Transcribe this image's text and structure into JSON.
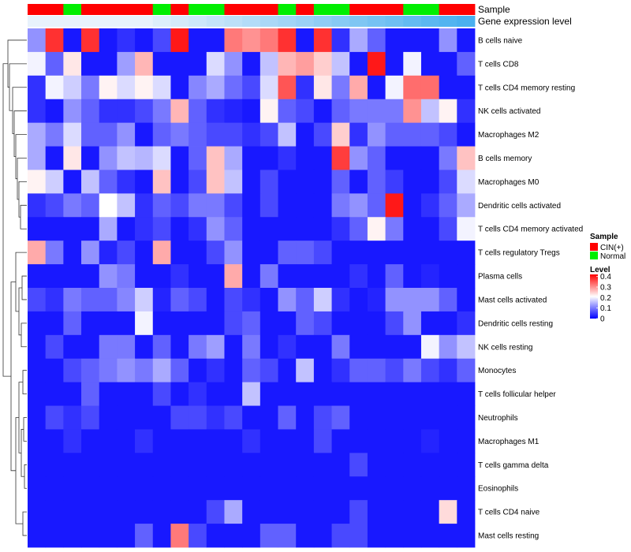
{
  "chart_data": {
    "type": "heatmap",
    "title": "",
    "annotations": [
      {
        "name": "Sample",
        "label": "Sample"
      },
      {
        "name": "Gene expression level",
        "label": "Gene expression level"
      }
    ],
    "rows": [
      "B cells naive",
      "T cells CD8",
      "T cells CD4 memory resting",
      "NK cells activated",
      "Macrophages M2",
      "B cells memory",
      "Macrophages M0",
      "Dendritic cells activated",
      "T cells CD4 memory activated",
      "T cells regulatory  Tregs",
      "Plasma cells",
      "Mast cells activated",
      "Dendritic cells resting",
      "NK cells resting",
      "Monocytes",
      "T cells follicular helper",
      "Neutrophils",
      "Macrophages M1",
      "T cells gamma delta",
      "Eosinophils",
      "T cells CD4 naive",
      "Mast cells resting"
    ],
    "columns": 25,
    "sample_groups": [
      "CIN+",
      "CIN+",
      "Normal",
      "CIN+",
      "CIN+",
      "CIN+",
      "CIN+",
      "Normal",
      "CIN+",
      "Normal",
      "Normal",
      "CIN+",
      "CIN+",
      "CIN+",
      "Normal",
      "CIN+",
      "Normal",
      "Normal",
      "CIN+",
      "CIN+",
      "CIN+",
      "Normal",
      "Normal",
      "CIN+",
      "CIN+"
    ],
    "gene_expression_level": [
      0.0,
      0.0,
      0.0,
      0.0,
      0.0,
      0.0,
      0.0,
      0.05,
      0.09,
      0.13,
      0.17,
      0.21,
      0.25,
      0.29,
      0.33,
      0.37,
      0.42,
      0.46,
      0.5,
      0.54,
      0.58,
      0.63,
      0.67,
      0.71,
      0.75
    ],
    "values": [
      [
        0.12,
        0.38,
        0.02,
        0.38,
        0.02,
        0.04,
        0.02,
        0.06,
        0.4,
        0.02,
        0.02,
        0.32,
        0.3,
        0.32,
        0.38,
        0.02,
        0.38,
        0.04,
        0.14,
        0.08,
        0.02,
        0.02,
        0.02,
        0.12,
        0.02
      ],
      [
        0.2,
        0.08,
        0.23,
        0.02,
        0.02,
        0.13,
        0.27,
        0.02,
        0.02,
        0.02,
        0.18,
        0.12,
        0.02,
        0.16,
        0.27,
        0.29,
        0.25,
        0.16,
        0.02,
        0.4,
        0.02,
        0.2,
        0.02,
        0.02,
        0.08
      ],
      [
        0.04,
        0.2,
        0.17,
        0.1,
        0.22,
        0.18,
        0.22,
        0.18,
        0.02,
        0.11,
        0.14,
        0.09,
        0.06,
        0.18,
        0.35,
        0.04,
        0.23,
        0.1,
        0.28,
        0.02,
        0.2,
        0.33,
        0.33,
        0.02,
        0.02
      ],
      [
        0.04,
        0.02,
        0.12,
        0.08,
        0.04,
        0.04,
        0.06,
        0.1,
        0.27,
        0.08,
        0.04,
        0.03,
        0.02,
        0.22,
        0.08,
        0.06,
        0.02,
        0.08,
        0.1,
        0.1,
        0.1,
        0.3,
        0.16,
        0.22,
        0.04
      ],
      [
        0.14,
        0.1,
        0.18,
        0.08,
        0.08,
        0.12,
        0.02,
        0.08,
        0.1,
        0.08,
        0.06,
        0.06,
        0.04,
        0.06,
        0.16,
        0.02,
        0.06,
        0.25,
        0.04,
        0.12,
        0.08,
        0.08,
        0.08,
        0.06,
        0.02
      ],
      [
        0.14,
        0.02,
        0.23,
        0.02,
        0.12,
        0.16,
        0.15,
        0.18,
        0.02,
        0.08,
        0.26,
        0.14,
        0.02,
        0.02,
        0.04,
        0.02,
        0.02,
        0.37,
        0.12,
        0.08,
        0.02,
        0.02,
        0.02,
        0.1,
        0.26
      ],
      [
        0.22,
        0.17,
        0.02,
        0.16,
        0.08,
        0.04,
        0.02,
        0.26,
        0.02,
        0.06,
        0.26,
        0.16,
        0.02,
        0.06,
        0.02,
        0.02,
        0.02,
        0.08,
        0.02,
        0.08,
        0.05,
        0.02,
        0.02,
        0.06,
        0.18
      ],
      [
        0.04,
        0.06,
        0.1,
        0.08,
        0.21,
        0.16,
        0.04,
        0.08,
        0.06,
        0.1,
        0.1,
        0.06,
        0.02,
        0.06,
        0.02,
        0.02,
        0.02,
        0.1,
        0.12,
        0.08,
        0.4,
        0.02,
        0.04,
        0.08,
        0.14
      ],
      [
        0.02,
        0.02,
        0.02,
        0.02,
        0.14,
        0.02,
        0.04,
        0.06,
        0.02,
        0.04,
        0.12,
        0.08,
        0.02,
        0.02,
        0.02,
        0.02,
        0.02,
        0.04,
        0.08,
        0.22,
        0.1,
        0.02,
        0.02,
        0.06,
        0.2
      ],
      [
        0.28,
        0.1,
        0.02,
        0.12,
        0.03,
        0.06,
        0.02,
        0.28,
        0.02,
        0.02,
        0.06,
        0.12,
        0.02,
        0.02,
        0.08,
        0.08,
        0.06,
        0.02,
        0.02,
        0.02,
        0.02,
        0.02,
        0.02,
        0.02,
        0.02
      ],
      [
        0.02,
        0.02,
        0.02,
        0.02,
        0.12,
        0.1,
        0.02,
        0.02,
        0.04,
        0.02,
        0.02,
        0.28,
        0.02,
        0.1,
        0.02,
        0.02,
        0.02,
        0.02,
        0.04,
        0.02,
        0.08,
        0.02,
        0.03,
        0.02,
        0.02
      ],
      [
        0.06,
        0.04,
        0.1,
        0.08,
        0.08,
        0.11,
        0.17,
        0.03,
        0.08,
        0.06,
        0.02,
        0.06,
        0.04,
        0.02,
        0.12,
        0.08,
        0.17,
        0.04,
        0.02,
        0.03,
        0.12,
        0.12,
        0.12,
        0.08,
        0.02
      ],
      [
        0.02,
        0.02,
        0.08,
        0.02,
        0.02,
        0.02,
        0.2,
        0.02,
        0.02,
        0.02,
        0.02,
        0.06,
        0.08,
        0.02,
        0.02,
        0.08,
        0.06,
        0.02,
        0.02,
        0.02,
        0.06,
        0.12,
        0.02,
        0.02,
        0.04
      ],
      [
        0.02,
        0.06,
        0.02,
        0.02,
        0.1,
        0.1,
        0.02,
        0.08,
        0.02,
        0.1,
        0.13,
        0.02,
        0.1,
        0.02,
        0.04,
        0.02,
        0.02,
        0.1,
        0.02,
        0.02,
        0.02,
        0.02,
        0.2,
        0.12,
        0.16
      ],
      [
        0.02,
        0.02,
        0.06,
        0.08,
        0.1,
        0.12,
        0.1,
        0.14,
        0.08,
        0.02,
        0.04,
        0.02,
        0.08,
        0.06,
        0.02,
        0.16,
        0.02,
        0.04,
        0.08,
        0.08,
        0.06,
        0.1,
        0.06,
        0.04,
        0.08
      ],
      [
        0.02,
        0.02,
        0.02,
        0.08,
        0.02,
        0.02,
        0.02,
        0.06,
        0.02,
        0.04,
        0.02,
        0.02,
        0.16,
        0.02,
        0.02,
        0.02,
        0.02,
        0.02,
        0.02,
        0.02,
        0.02,
        0.02,
        0.02,
        0.02,
        0.02
      ],
      [
        0.02,
        0.06,
        0.04,
        0.06,
        0.02,
        0.02,
        0.02,
        0.02,
        0.06,
        0.06,
        0.04,
        0.06,
        0.02,
        0.02,
        0.08,
        0.02,
        0.06,
        0.08,
        0.02,
        0.02,
        0.02,
        0.02,
        0.02,
        0.02,
        0.02
      ],
      [
        0.02,
        0.02,
        0.04,
        0.02,
        0.02,
        0.02,
        0.04,
        0.02,
        0.02,
        0.02,
        0.02,
        0.02,
        0.04,
        0.02,
        0.02,
        0.02,
        0.06,
        0.02,
        0.02,
        0.02,
        0.02,
        0.02,
        0.03,
        0.02,
        0.02
      ],
      [
        0.02,
        0.02,
        0.02,
        0.02,
        0.02,
        0.02,
        0.02,
        0.02,
        0.02,
        0.02,
        0.02,
        0.02,
        0.02,
        0.02,
        0.02,
        0.02,
        0.02,
        0.02,
        0.06,
        0.02,
        0.02,
        0.02,
        0.02,
        0.02,
        0.02
      ],
      [
        0.02,
        0.02,
        0.02,
        0.02,
        0.02,
        0.02,
        0.02,
        0.02,
        0.02,
        0.02,
        0.02,
        0.02,
        0.02,
        0.02,
        0.02,
        0.02,
        0.02,
        0.02,
        0.02,
        0.02,
        0.02,
        0.02,
        0.02,
        0.02,
        0.02
      ],
      [
        0.02,
        0.02,
        0.02,
        0.02,
        0.02,
        0.02,
        0.02,
        0.02,
        0.02,
        0.02,
        0.06,
        0.14,
        0.02,
        0.02,
        0.02,
        0.02,
        0.02,
        0.02,
        0.06,
        0.02,
        0.02,
        0.02,
        0.02,
        0.24,
        0.02
      ],
      [
        0.02,
        0.02,
        0.02,
        0.02,
        0.02,
        0.02,
        0.08,
        0.02,
        0.32,
        0.06,
        0.02,
        0.02,
        0.02,
        0.08,
        0.08,
        0.02,
        0.02,
        0.06,
        0.06,
        0.02,
        0.02,
        0.02,
        0.02,
        0.02,
        0.02
      ]
    ],
    "legends": {
      "sample": {
        "title": "Sample",
        "entries": [
          {
            "label": "CIN(+)",
            "color": "#ff0000"
          },
          {
            "label": "Normal",
            "color": "#00ee00"
          }
        ]
      },
      "level": {
        "title": "Level",
        "ticks": [
          "0.4",
          "0.3",
          "0.2",
          "0.1",
          "0"
        ],
        "tick_values": [
          0.4,
          0.3,
          0.2,
          0.1,
          0.0
        ],
        "range": [
          0.0,
          0.42
        ]
      }
    },
    "colors": {
      "low": "#0000ff",
      "mid": "#ffffff",
      "high": "#ff0000",
      "cin": "#ff0000",
      "normal": "#00ee00",
      "gel_low": "#e8f2fc",
      "gel_high": "#4ab0ef"
    }
  }
}
